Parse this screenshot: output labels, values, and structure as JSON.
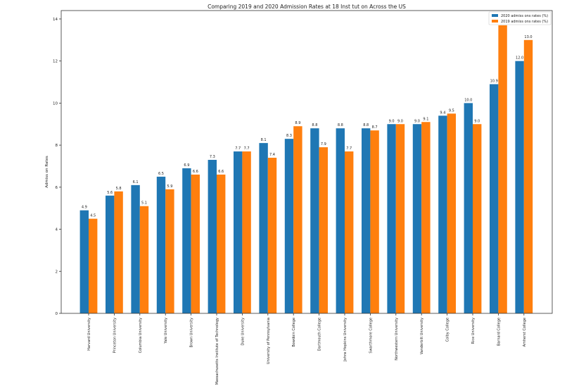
{
  "chart_data": {
    "type": "bar",
    "title": "Comparing 2019 and 2020 Admission Rates at 18 Inst tut on Across the US",
    "xlabel": "",
    "ylabel": "Admiss on Rates",
    "ylim": [
      0,
      14.4
    ],
    "yticks": [
      0,
      2,
      4,
      6,
      8,
      10,
      12,
      14
    ],
    "grid": false,
    "legend_position": "top-right",
    "categories": [
      "Harvard University",
      "Princeton University",
      "Columbia University",
      "Yale University",
      "Brown University",
      "Massachusetts Institute of Technology",
      "Duke University",
      "University of Pennsylvania",
      "Bowdoin College",
      "Dartmouth College",
      "Johns Hopkins University",
      "Swarthmore College",
      "Northwestern University",
      "Vanderbilt University",
      "Colby College",
      "Rice University",
      "Barnard College",
      "Amherst College"
    ],
    "series": [
      {
        "name": "2020 admiss ons rates (%)",
        "color": "#1f77b4",
        "values": [
          4.9,
          5.6,
          6.1,
          6.5,
          6.9,
          7.3,
          7.7,
          8.1,
          8.3,
          8.8,
          8.8,
          8.8,
          9.0,
          9.0,
          9.4,
          10.0,
          10.9,
          12.0
        ],
        "labels": [
          "4.9",
          "5.6",
          "6.1",
          "6.5",
          "6.9",
          "7.3",
          "7.7",
          "8.1",
          "8.3",
          "8.8",
          "8.8",
          "8.8",
          "9.0",
          "9.0",
          "9.4",
          "10.0",
          "10.9",
          "12.0"
        ]
      },
      {
        "name": "2019 admiss ons rates (%)",
        "color": "#ff7f0e",
        "values": [
          4.5,
          5.8,
          5.1,
          5.9,
          6.6,
          6.6,
          7.7,
          7.4,
          8.9,
          7.9,
          7.7,
          8.7,
          9.0,
          9.1,
          9.5,
          9.0,
          13.7,
          13.0
        ],
        "labels": [
          "4.5",
          "5.8",
          "5.1",
          "5.9",
          "6.6",
          "6.6",
          "7.7",
          "7.4",
          "8.9",
          "7.9",
          "7.7",
          "8.7",
          "9.0",
          "9.1",
          "9.5",
          "9.0",
          "",
          "13.0"
        ]
      }
    ]
  }
}
